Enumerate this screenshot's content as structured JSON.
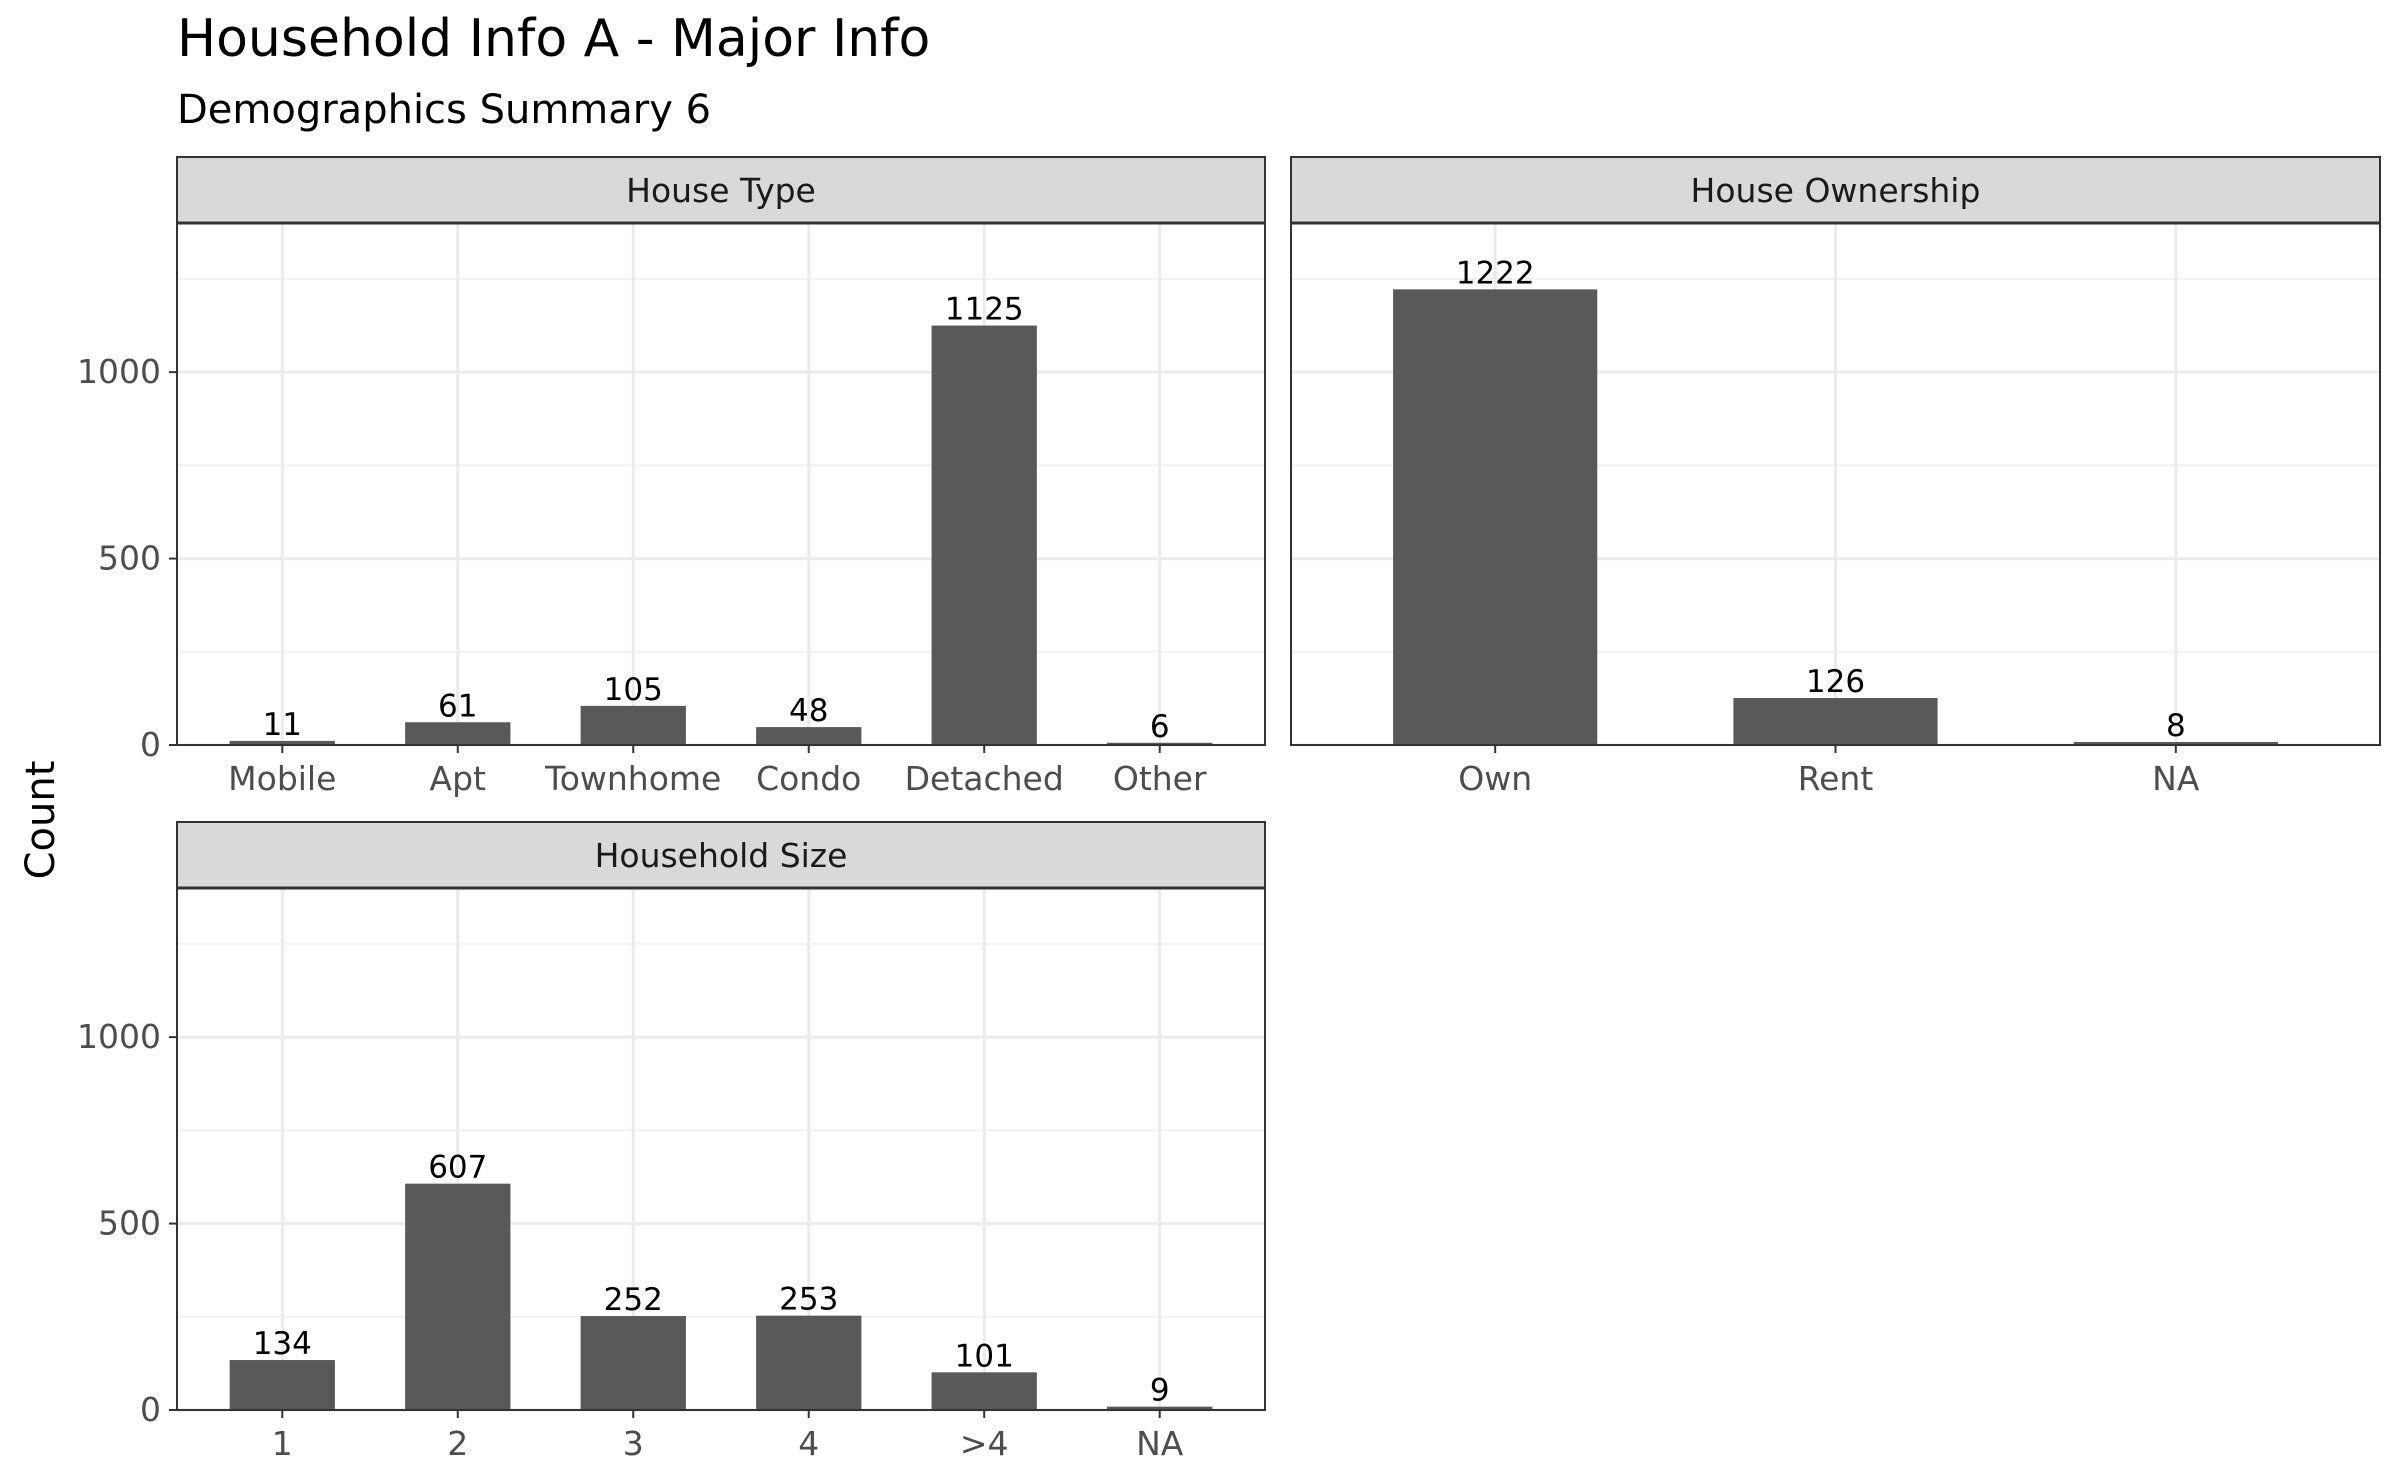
{
  "chart_data": {
    "type": "bar",
    "title": "Household Info A - Major Info",
    "subtitle": "Demographics Summary 6",
    "xlabel": "",
    "ylabel": "Count",
    "ylim": [
      0,
      1400
    ],
    "yticks": [
      0,
      500,
      1000
    ],
    "grid": true,
    "facets": [
      {
        "name": "House Type",
        "categories": [
          "Mobile",
          "Apt",
          "Townhome",
          "Condo",
          "Detached",
          "Other"
        ],
        "values": [
          11,
          61,
          105,
          48,
          1125,
          6
        ]
      },
      {
        "name": "House Ownership",
        "categories": [
          "Own",
          "Rent",
          "NA"
        ],
        "values": [
          1222,
          126,
          8
        ]
      },
      {
        "name": "Household Size",
        "categories": [
          "1",
          "2",
          "3",
          "4",
          ">4",
          "NA"
        ],
        "values": [
          134,
          607,
          252,
          253,
          101,
          9
        ]
      }
    ]
  },
  "colors": {
    "bar": "#595959",
    "strip_fill": "#d9d9d9",
    "panel_border": "#333333",
    "grid_major": "#ebebeb",
    "grid_minor": "#f2f2f2"
  }
}
